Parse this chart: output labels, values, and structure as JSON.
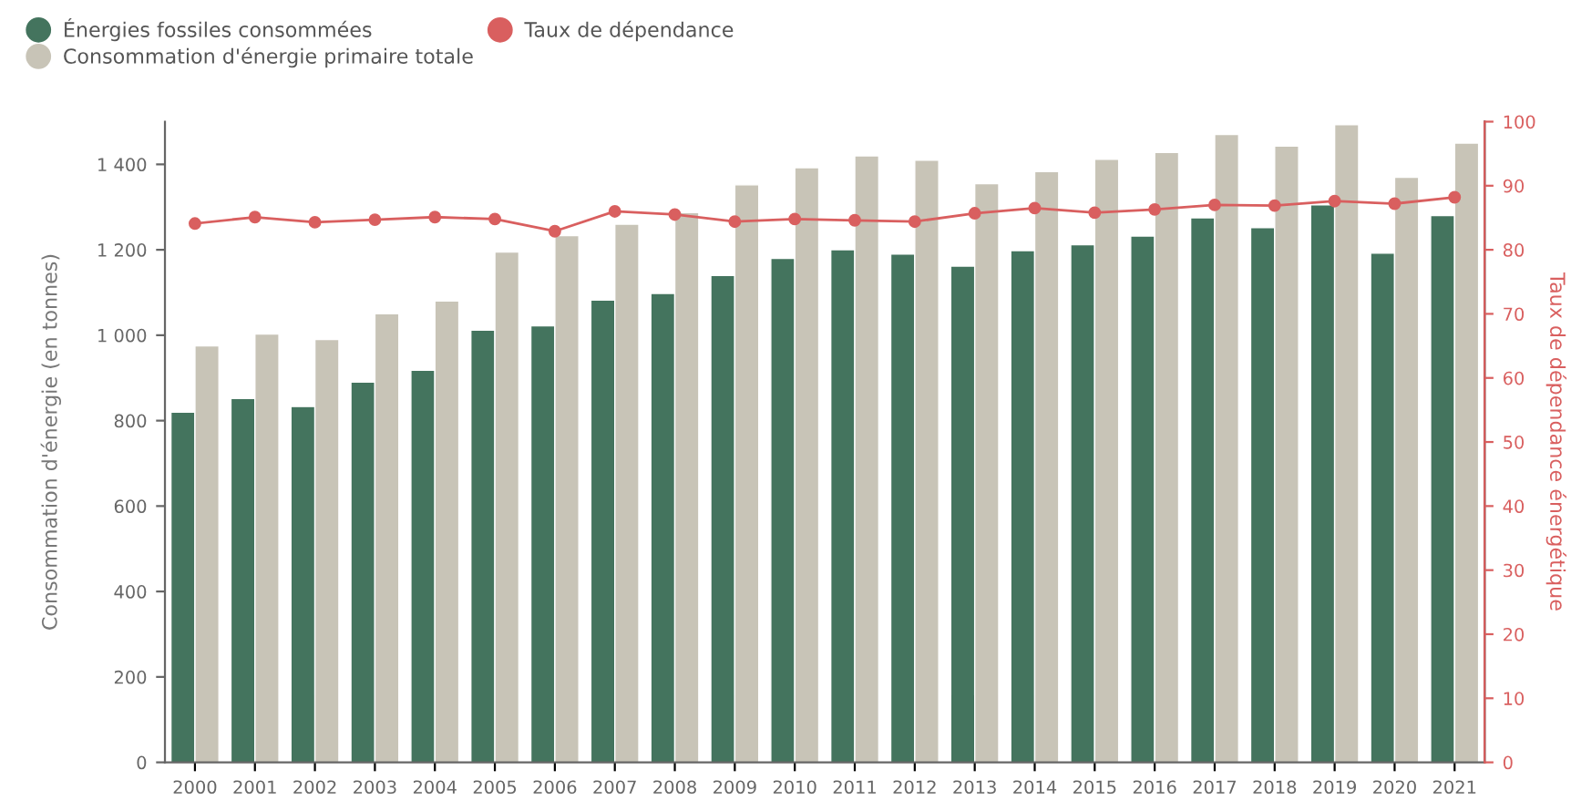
{
  "chart_data": {
    "type": "bar",
    "categories": [
      "2000",
      "2001",
      "2002",
      "2003",
      "2004",
      "2005",
      "2006",
      "2007",
      "2008",
      "2009",
      "2010",
      "2011",
      "2012",
      "2013",
      "2014",
      "2015",
      "2016",
      "2017",
      "2018",
      "2019",
      "2020",
      "2021"
    ],
    "ylabel": "Consommation d'énergie (en tonnes)",
    "y2label": "Taux de dépendance énergétique",
    "series": [
      {
        "name": "Énergies fossiles consommées",
        "color": "#44745e",
        "values": [
          820,
          852,
          833,
          890,
          918,
          1012,
          1022,
          1082,
          1098,
          1140,
          1180,
          1200,
          1190,
          1162,
          1198,
          1212,
          1232,
          1275,
          1252,
          1305,
          1192,
          1280
        ]
      },
      {
        "name": "Consommation d'énergie primaire totale",
        "color": "#c8c4b7",
        "values": [
          975,
          1003,
          990,
          1050,
          1080,
          1195,
          1233,
          1260,
          1287,
          1352,
          1392,
          1420,
          1410,
          1355,
          1383,
          1412,
          1428,
          1470,
          1443,
          1493,
          1370,
          1450
        ]
      },
      {
        "name": "Taux de dépendance",
        "type": "line",
        "axis": "y2",
        "color": "#d95f5f",
        "values": [
          84.1,
          85.1,
          84.3,
          84.7,
          85.1,
          84.8,
          82.9,
          86.0,
          85.5,
          84.4,
          84.8,
          84.6,
          84.4,
          85.7,
          86.5,
          85.8,
          86.3,
          87.0,
          86.9,
          87.6,
          87.2,
          88.2
        ]
      }
    ],
    "ylim": [
      0,
      1500
    ],
    "yticks": [
      0,
      200,
      400,
      600,
      800,
      {
        "value": 1000,
        "label": "1 000"
      },
      {
        "value": 1200,
        "label": "1 200"
      },
      {
        "value": 1400,
        "label": "1 400"
      }
    ],
    "y2lim": [
      0,
      100
    ],
    "y2ticks": [
      0,
      10,
      20,
      30,
      40,
      50,
      60,
      70,
      80,
      90,
      100
    ],
    "marker": "circle",
    "grid": false,
    "legend": "top left"
  }
}
